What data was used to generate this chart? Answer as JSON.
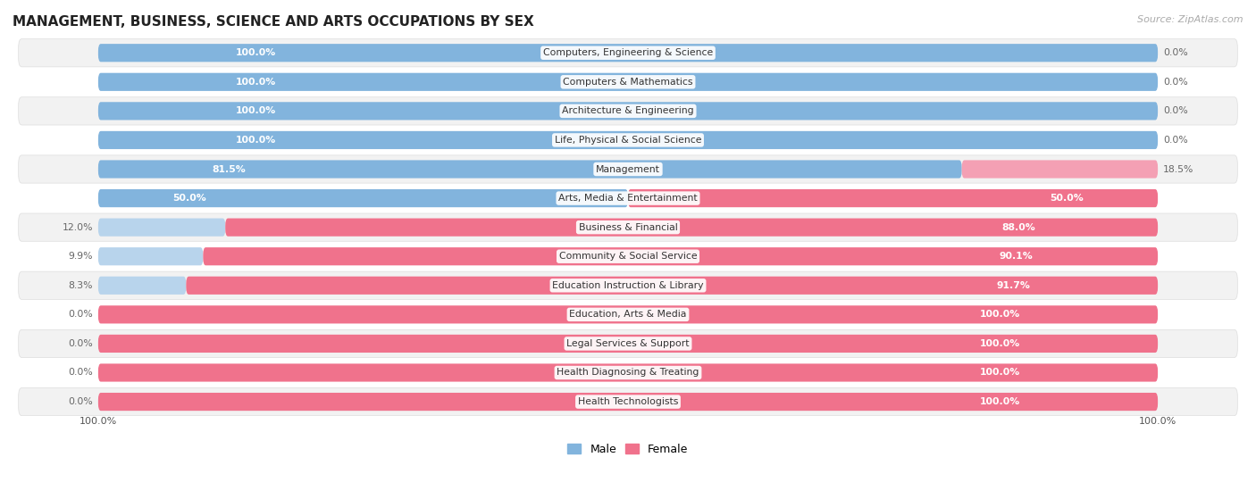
{
  "title": "MANAGEMENT, BUSINESS, SCIENCE AND ARTS OCCUPATIONS BY SEX",
  "source": "Source: ZipAtlas.com",
  "categories": [
    "Computers, Engineering & Science",
    "Computers & Mathematics",
    "Architecture & Engineering",
    "Life, Physical & Social Science",
    "Management",
    "Arts, Media & Entertainment",
    "Business & Financial",
    "Community & Social Service",
    "Education Instruction & Library",
    "Education, Arts & Media",
    "Legal Services & Support",
    "Health Diagnosing & Treating",
    "Health Technologists"
  ],
  "male_pct": [
    100.0,
    100.0,
    100.0,
    100.0,
    81.5,
    50.0,
    12.0,
    9.9,
    8.3,
    0.0,
    0.0,
    0.0,
    0.0
  ],
  "female_pct": [
    0.0,
    0.0,
    0.0,
    0.0,
    18.5,
    50.0,
    88.0,
    90.1,
    91.7,
    100.0,
    100.0,
    100.0,
    100.0
  ],
  "male_color": "#82b4dd",
  "female_color": "#f0728c",
  "male_color_light": "#b8d4ec",
  "female_color_light": "#f4a0b4",
  "bg_color": "#ffffff",
  "row_bg": "#f2f2f2",
  "label_inside_color": "#ffffff",
  "label_outside_color": "#666666",
  "bar_height": 0.62,
  "figsize": [
    14.06,
    5.59
  ],
  "dpi": 100,
  "xlim_left": -8,
  "xlim_right": 108,
  "label_inside_threshold_male": 20,
  "label_inside_threshold_female": 20
}
